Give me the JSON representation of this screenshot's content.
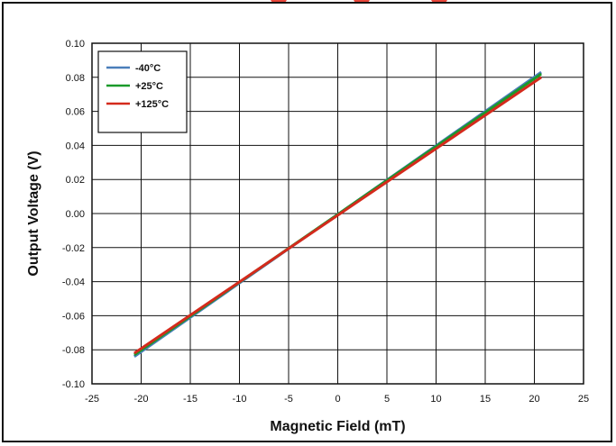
{
  "chart_data": {
    "type": "line",
    "xlabel": "Magnetic Field (mT)",
    "ylabel": "Output Voltage (V)",
    "xlim": [
      -25,
      25
    ],
    "ylim": [
      -0.1,
      0.1
    ],
    "xticks": [
      -25,
      -20,
      -15,
      -10,
      -5,
      0,
      5,
      10,
      15,
      20,
      25
    ],
    "yticks": [
      -0.1,
      -0.08,
      -0.06,
      -0.04,
      -0.02,
      0.0,
      0.02,
      0.04,
      0.06,
      0.08,
      0.1
    ],
    "xtick_labels": [
      "-25",
      "-20",
      "-15",
      "-10",
      "-5",
      "0",
      "5",
      "10",
      "15",
      "20",
      "25"
    ],
    "ytick_labels": [
      "-0.10",
      "-0.08",
      "-0.06",
      "-0.04",
      "-0.02",
      "0.00",
      "0.02",
      "0.04",
      "0.06",
      "0.08",
      "0.10"
    ],
    "grid": true,
    "legend_position": "top-left",
    "series": [
      {
        "name": "-40°C",
        "color": "#4a7eba",
        "x": [
          -20.7,
          20.7
        ],
        "y": [
          -0.084,
          0.083
        ]
      },
      {
        "name": "+25°C",
        "color": "#1a9a2a",
        "x": [
          -20.7,
          20.7
        ],
        "y": [
          -0.083,
          0.082
        ]
      },
      {
        "name": "+125°C",
        "color": "#d42a1c",
        "x": [
          -20.7,
          20.7
        ],
        "y": [
          -0.082,
          0.08
        ]
      }
    ]
  }
}
